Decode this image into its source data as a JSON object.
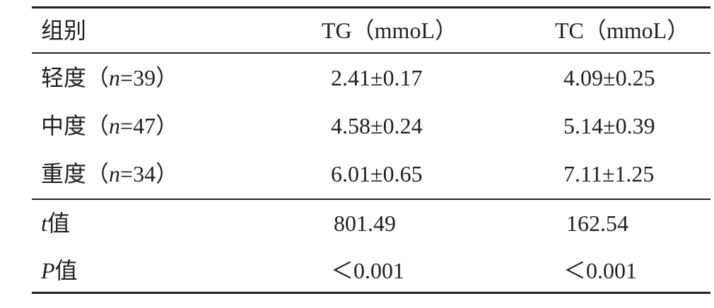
{
  "table": {
    "header": [
      "组别",
      "TG（mmoL）",
      "TC（mmoL）"
    ],
    "rows": [
      {
        "label": [
          "轻度（",
          "n",
          "=39）"
        ],
        "cells": [
          "2.41±0.17",
          "4.09±0.25"
        ]
      },
      {
        "label": [
          "中度（",
          "n",
          "=47）"
        ],
        "cells": [
          "4.58±0.24",
          "5.14±0.39"
        ]
      },
      {
        "label": [
          "重度（",
          "n",
          "=34）"
        ],
        "cells": [
          "6.01±0.65",
          "7.11±1.25"
        ]
      },
      {
        "label": [
          "t",
          "值"
        ],
        "cells": [
          "801.49",
          "162.54"
        ]
      },
      {
        "label": [
          "P",
          "值"
        ],
        "cells": [
          "＜0.001",
          "＜0.001"
        ]
      }
    ]
  }
}
